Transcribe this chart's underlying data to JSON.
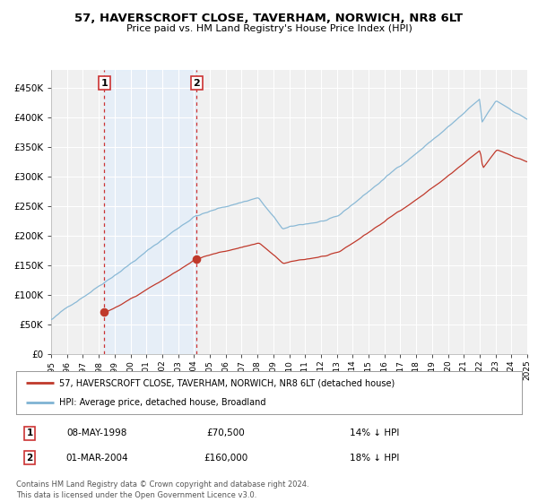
{
  "title": "57, HAVERSCROFT CLOSE, TAVERHAM, NORWICH, NR8 6LT",
  "subtitle": "Price paid vs. HM Land Registry's House Price Index (HPI)",
  "bg_color": "#ffffff",
  "plot_bg_color": "#f0f0f0",
  "grid_color": "#ffffff",
  "sale1_date_num": 1998.35,
  "sale1_price": 70500,
  "sale1_label": "1",
  "sale1_date_str": "08-MAY-1998",
  "sale1_pct": "14% ↓ HPI",
  "sale2_date_num": 2004.17,
  "sale2_price": 160000,
  "sale2_label": "2",
  "sale2_date_str": "01-MAR-2004",
  "sale2_pct": "18% ↓ HPI",
  "hpi_line_color": "#7fb3d3",
  "price_line_color": "#c0392b",
  "sale_dot_color": "#c0392b",
  "vline_color": "#cc3333",
  "shade_color": "#ddeeff",
  "legend_label_price": "57, HAVERSCROFT CLOSE, TAVERHAM, NORWICH, NR8 6LT (detached house)",
  "legend_label_hpi": "HPI: Average price, detached house, Broadland",
  "footer1": "Contains HM Land Registry data © Crown copyright and database right 2024.",
  "footer2": "This data is licensed under the Open Government Licence v3.0.",
  "xmin": 1995,
  "xmax": 2025,
  "ymin": 0,
  "ymax": 480000,
  "yticks": [
    0,
    50000,
    100000,
    150000,
    200000,
    250000,
    300000,
    350000,
    400000,
    450000
  ]
}
